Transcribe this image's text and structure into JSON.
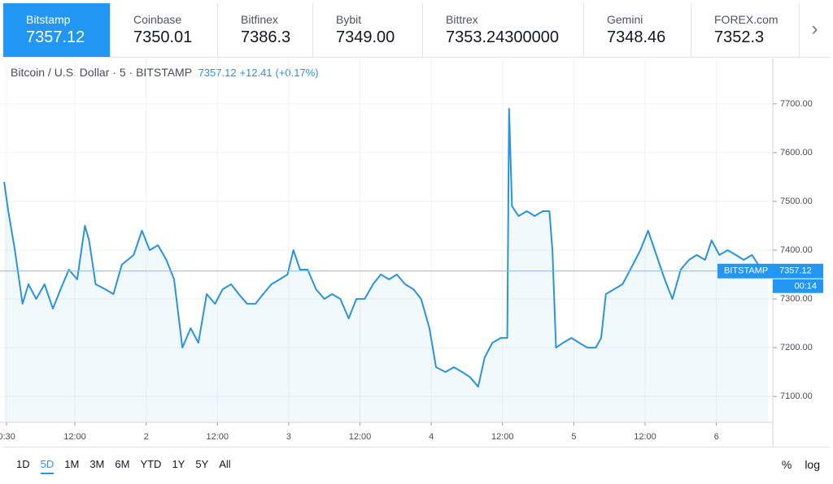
{
  "tabs": [
    {
      "name": "Bitstamp",
      "price": "7357.12"
    },
    {
      "name": "Coinbase",
      "price": "7350.01"
    },
    {
      "name": "Bitfinex",
      "price": "7386.3"
    },
    {
      "name": "Bybit",
      "price": "7349.00"
    },
    {
      "name": "Bittrex",
      "price": "7353.24300000"
    },
    {
      "name": "Gemini",
      "price": "7348.46"
    },
    {
      "name": "FOREX.com",
      "price": "7352.3"
    }
  ],
  "header": {
    "symbol": "Bitcoin / U.S. Dollar",
    "interval": "5",
    "exchange": "BITSTAMP",
    "price": "7357.12",
    "change": "+12.41",
    "change_pct": "(+0.17%)"
  },
  "chart_data": {
    "type": "line",
    "color": "#2a93df",
    "grid": true,
    "x": [
      0.1,
      0.8,
      1.9,
      3.2,
      4.2,
      5.5,
      6.9,
      8.3,
      9.6,
      11.0,
      12.4,
      13.7,
      14.4,
      15.5,
      17.1,
      18.5,
      19.9,
      21.9,
      23.3,
      24.6,
      26.0,
      27.4,
      28.7,
      30.1,
      31.5,
      32.8,
      34.2,
      35.6,
      36.9,
      38.3,
      39.6,
      41.0,
      42.4,
      43.7,
      45.1,
      46.5,
      47.8,
      48.8,
      49.9,
      51.2,
      52.6,
      54.0,
      55.3,
      56.7,
      58.1,
      59.4,
      60.8,
      62.2,
      63.5,
      64.9,
      66.2,
      67.6,
      69.0,
      70.3,
      71.7,
      72.8,
      74.4,
      75.8,
      77.2,
      78.5,
      79.9,
      81.0,
      82.3,
      83.7,
      84.8,
      85.1,
      85.6,
      86.7,
      88.1,
      89.4,
      90.8,
      91.9,
      92.4,
      93.0,
      94.2,
      95.6,
      96.9,
      98.3,
      99.7,
      100.6,
      101.4,
      102.8,
      104.2,
      105.5,
      107.2,
      108.5,
      109.9,
      111.3,
      112.6,
      114.0,
      115.4,
      116.7,
      118.1,
      119.2,
      120.5,
      121.9,
      123.3,
      124.6,
      126.0,
      127.6,
      128.7
    ],
    "values": [
      7540,
      7480,
      7400,
      7290,
      7330,
      7300,
      7330,
      7280,
      7320,
      7360,
      7340,
      7450,
      7420,
      7330,
      7320,
      7310,
      7370,
      7390,
      7440,
      7400,
      7410,
      7380,
      7340,
      7200,
      7240,
      7210,
      7310,
      7290,
      7320,
      7330,
      7310,
      7290,
      7290,
      7310,
      7330,
      7340,
      7350,
      7400,
      7360,
      7360,
      7320,
      7300,
      7310,
      7300,
      7260,
      7300,
      7300,
      7330,
      7350,
      7340,
      7350,
      7330,
      7320,
      7300,
      7240,
      7160,
      7150,
      7160,
      7150,
      7140,
      7120,
      7180,
      7210,
      7220,
      7220,
      7690,
      7490,
      7470,
      7480,
      7470,
      7480,
      7480,
      7400,
      7200,
      7210,
      7220,
      7210,
      7200,
      7200,
      7220,
      7310,
      7320,
      7330,
      7360,
      7400,
      7440,
      7390,
      7340,
      7300,
      7360,
      7380,
      7390,
      7380,
      7420,
      7390,
      7400,
      7390,
      7380,
      7390,
      7360,
      7357.12
    ],
    "xlim": [
      -0.6,
      129.5
    ],
    "xticks": [
      {
        "value": 0.5,
        "label": "0:30"
      },
      {
        "value": 12,
        "label": "12:00"
      },
      {
        "value": 24,
        "label": "2"
      },
      {
        "value": 36,
        "label": "12:00"
      },
      {
        "value": 48,
        "label": "3"
      },
      {
        "value": 60,
        "label": "12:00"
      },
      {
        "value": 72,
        "label": "4"
      },
      {
        "value": 84,
        "label": "12:00"
      },
      {
        "value": 96,
        "label": "5"
      },
      {
        "value": 108,
        "label": "12:00"
      },
      {
        "value": 120,
        "label": "6"
      }
    ],
    "ylim": [
      7047,
      7793
    ],
    "yticks": [
      {
        "value": 7100,
        "label": "7100.00"
      },
      {
        "value": 7200,
        "label": "7200.00"
      },
      {
        "value": 7300,
        "label": "7300.00"
      },
      {
        "value": 7400,
        "label": "7400.00"
      },
      {
        "value": 7500,
        "label": "7500.00"
      },
      {
        "value": 7600,
        "label": "7600.00"
      },
      {
        "value": 7700,
        "label": "7700.00"
      }
    ],
    "last_price": {
      "exchange": "BITSTAMP",
      "value": 7357.12,
      "countdown": "00:14"
    }
  },
  "ranges": [
    "1D",
    "5D",
    "1M",
    "3M",
    "6M",
    "YTD",
    "1Y",
    "5Y",
    "All"
  ],
  "scale_buttons": [
    "%",
    "log"
  ]
}
